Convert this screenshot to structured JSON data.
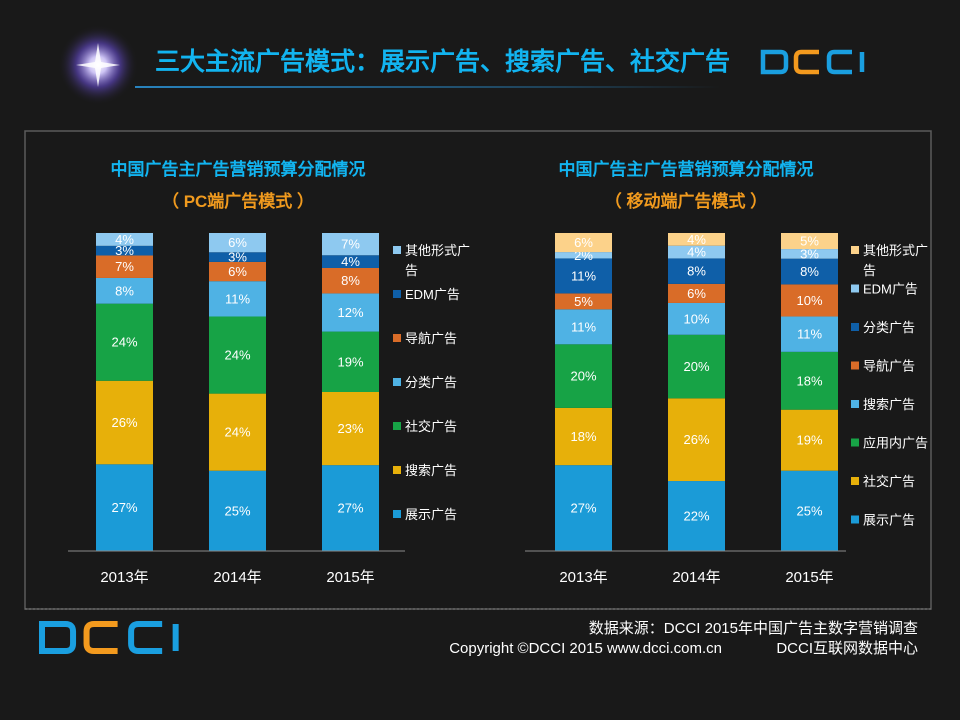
{
  "slide": {
    "title": "三大主流广告模式：展示广告、搜索广告、社交广告",
    "brand": "DCCI",
    "footer_source": "数据来源：DCCI  2015年中国广告主数字营销调查",
    "footer_copyright": "Copyright ©DCCI 2015 www.dcci.com.cn",
    "footer_org": "DCCI互联网数据中心",
    "colors": {
      "title": "#12b4f0",
      "chart_title": "#12b4f0",
      "subtitle": "#f09a1e",
      "brand_blue": "#1a9fe0",
      "brand_orange": "#f39a1e"
    }
  },
  "chart_data": [
    {
      "type": "bar",
      "stacked": true,
      "title": "中国广告主广告营销预算分配情况",
      "subtitle": "（ PC端广告模式 ）",
      "categories": [
        "2013年",
        "2014年",
        "2015年"
      ],
      "unit": "%",
      "ylim": [
        0,
        100
      ],
      "series": [
        {
          "name": "展示广告",
          "color": "#1b9bd7",
          "values": [
            27,
            25,
            27
          ]
        },
        {
          "name": "搜索广告",
          "color": "#e7b00a",
          "values": [
            26,
            24,
            23
          ]
        },
        {
          "name": "社交广告",
          "color": "#17a346",
          "values": [
            24,
            24,
            19
          ]
        },
        {
          "name": "分类广告",
          "color": "#4fb2e4",
          "values": [
            8,
            11,
            12
          ]
        },
        {
          "name": "导航广告",
          "color": "#d96c28",
          "values": [
            7,
            6,
            8
          ]
        },
        {
          "name": "EDM广告",
          "color": "#0f5fa8",
          "values": [
            3,
            3,
            4
          ]
        },
        {
          "name": "其他形式广告",
          "color": "#8ec9f0",
          "values": [
            4,
            6,
            7
          ]
        }
      ]
    },
    {
      "type": "bar",
      "stacked": true,
      "title": "中国广告主广告营销预算分配情况",
      "subtitle": "（ 移动端广告模式 ）",
      "categories": [
        "2013年",
        "2014年",
        "2015年"
      ],
      "unit": "%",
      "ylim": [
        0,
        100
      ],
      "series": [
        {
          "name": "展示广告",
          "color": "#1b9bd7",
          "values": [
            27,
            22,
            25
          ]
        },
        {
          "name": "社交广告",
          "color": "#e7b00a",
          "values": [
            18,
            26,
            19
          ]
        },
        {
          "name": "应用内广告",
          "color": "#17a346",
          "values": [
            20,
            20,
            18
          ]
        },
        {
          "name": "搜索广告",
          "color": "#4fb2e4",
          "values": [
            11,
            10,
            11
          ]
        },
        {
          "name": "导航广告",
          "color": "#d96c28",
          "values": [
            5,
            6,
            10
          ]
        },
        {
          "name": "分类广告",
          "color": "#0f5fa8",
          "values": [
            11,
            8,
            8
          ]
        },
        {
          "name": "EDM广告",
          "color": "#8ec9f0",
          "values": [
            2,
            4,
            3
          ]
        },
        {
          "name": "其他形式广告",
          "color": "#fcd28a",
          "values": [
            6,
            4,
            5
          ]
        }
      ]
    }
  ]
}
